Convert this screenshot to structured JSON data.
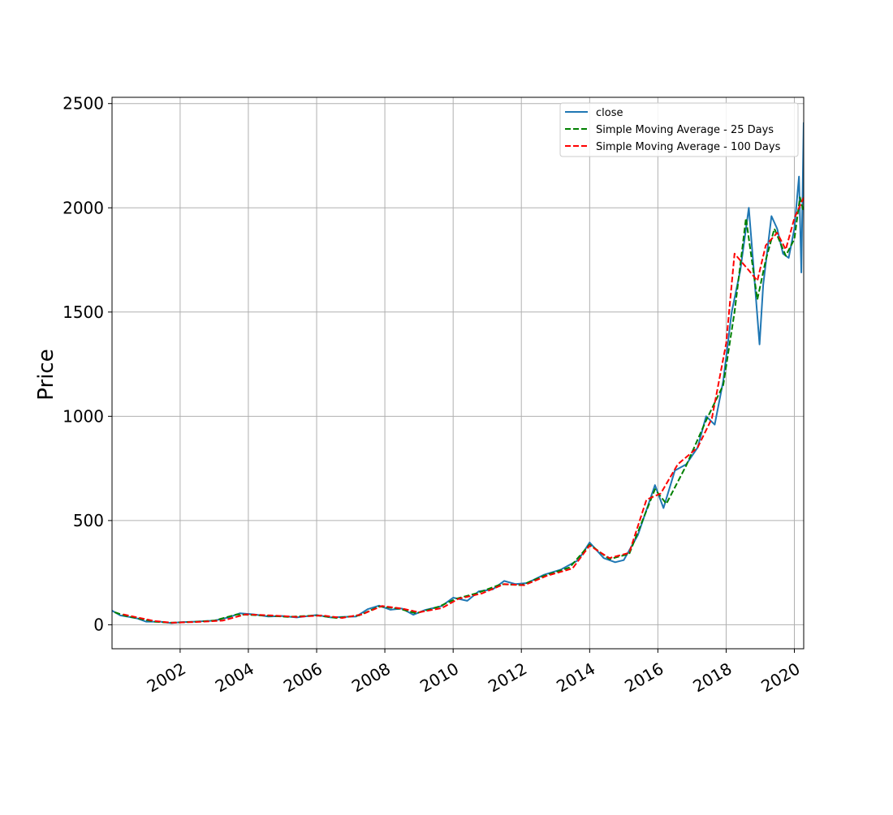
{
  "chart_data": {
    "type": "line",
    "title": "",
    "xlabel": "",
    "ylabel": "Price",
    "x_axis_kind": "date",
    "xlim": [
      "2000-01-03",
      "2020-04-10"
    ],
    "ylim": [
      -115,
      2530
    ],
    "x_ticks": [
      "2002-01-01",
      "2004-01-01",
      "2006-01-01",
      "2008-01-01",
      "2010-01-01",
      "2012-01-01",
      "2014-01-01",
      "2016-01-01",
      "2018-01-01",
      "2020-01-01"
    ],
    "x_tick_labels": [
      "2002",
      "2004",
      "2006",
      "2008",
      "2010",
      "2012",
      "2014",
      "2016",
      "2018",
      "2020"
    ],
    "y_ticks": [
      0,
      500,
      1000,
      1500,
      2000,
      2500
    ],
    "y_tick_labels": [
      "0",
      "500",
      "1000",
      "1500",
      "2000",
      "2500"
    ],
    "grid": true,
    "legend_position": "upper right",
    "series": [
      {
        "name": "close",
        "color": "#1f77b4",
        "style": "solid",
        "points": [
          [
            "2000-01-03",
            68
          ],
          [
            "2000-04-01",
            45
          ],
          [
            "2000-07-01",
            38
          ],
          [
            "2000-10-01",
            30
          ],
          [
            "2001-01-01",
            15
          ],
          [
            "2001-06-01",
            15
          ],
          [
            "2001-10-01",
            8
          ],
          [
            "2002-01-01",
            12
          ],
          [
            "2002-06-01",
            15
          ],
          [
            "2003-01-01",
            20
          ],
          [
            "2003-06-01",
            35
          ],
          [
            "2003-10-01",
            55
          ],
          [
            "2004-03-01",
            50
          ],
          [
            "2004-08-01",
            40
          ],
          [
            "2005-01-01",
            42
          ],
          [
            "2005-06-01",
            35
          ],
          [
            "2006-01-01",
            47
          ],
          [
            "2006-06-01",
            35
          ],
          [
            "2006-10-01",
            38
          ],
          [
            "2007-03-01",
            40
          ],
          [
            "2007-07-01",
            75
          ],
          [
            "2007-11-01",
            92
          ],
          [
            "2008-03-01",
            72
          ],
          [
            "2008-07-01",
            78
          ],
          [
            "2008-11-01",
            48
          ],
          [
            "2009-03-01",
            70
          ],
          [
            "2009-09-01",
            90
          ],
          [
            "2010-01-01",
            130
          ],
          [
            "2010-06-01",
            115
          ],
          [
            "2010-10-01",
            160
          ],
          [
            "2011-03-01",
            170
          ],
          [
            "2011-07-01",
            210
          ],
          [
            "2011-11-01",
            195
          ],
          [
            "2012-03-01",
            200
          ],
          [
            "2012-09-01",
            240
          ],
          [
            "2013-03-01",
            265
          ],
          [
            "2013-09-01",
            310
          ],
          [
            "2014-01-01",
            395
          ],
          [
            "2014-06-01",
            320
          ],
          [
            "2014-10-01",
            300
          ],
          [
            "2015-01-01",
            310
          ],
          [
            "2015-06-01",
            430
          ],
          [
            "2015-12-01",
            670
          ],
          [
            "2016-03-01",
            560
          ],
          [
            "2016-07-01",
            740
          ],
          [
            "2016-11-01",
            770
          ],
          [
            "2017-03-01",
            850
          ],
          [
            "2017-06-01",
            1000
          ],
          [
            "2017-09-01",
            960
          ],
          [
            "2017-12-01",
            1170
          ],
          [
            "2018-03-01",
            1500
          ],
          [
            "2018-06-01",
            1700
          ],
          [
            "2018-09-01",
            2000
          ],
          [
            "2018-10-15",
            1750
          ],
          [
            "2018-12-24",
            1345
          ],
          [
            "2019-02-01",
            1630
          ],
          [
            "2019-05-01",
            1960
          ],
          [
            "2019-07-01",
            1900
          ],
          [
            "2019-09-01",
            1780
          ],
          [
            "2019-11-01",
            1760
          ],
          [
            "2020-01-01",
            1900
          ],
          [
            "2020-02-20",
            2150
          ],
          [
            "2020-03-16",
            1690
          ],
          [
            "2020-04-10",
            2410
          ]
        ]
      },
      {
        "name": "Simple Moving Average - 25 Days",
        "color": "#008000",
        "style": "dashed",
        "points": [
          [
            "2000-02-01",
            60
          ],
          [
            "2000-06-01",
            42
          ],
          [
            "2000-11-01",
            28
          ],
          [
            "2001-04-01",
            15
          ],
          [
            "2001-10-01",
            10
          ],
          [
            "2002-06-01",
            14
          ],
          [
            "2003-01-01",
            20
          ],
          [
            "2003-09-01",
            50
          ],
          [
            "2004-06-01",
            45
          ],
          [
            "2005-03-01",
            38
          ],
          [
            "2006-01-01",
            45
          ],
          [
            "2006-08-01",
            33
          ],
          [
            "2007-04-01",
            45
          ],
          [
            "2007-11-01",
            88
          ],
          [
            "2008-06-01",
            77
          ],
          [
            "2008-12-01",
            55
          ],
          [
            "2009-08-01",
            87
          ],
          [
            "2010-02-01",
            125
          ],
          [
            "2010-09-01",
            150
          ],
          [
            "2011-06-01",
            195
          ],
          [
            "2012-01-01",
            190
          ],
          [
            "2012-09-01",
            235
          ],
          [
            "2013-06-01",
            275
          ],
          [
            "2014-01-01",
            385
          ],
          [
            "2014-08-01",
            315
          ],
          [
            "2015-03-01",
            340
          ],
          [
            "2015-12-01",
            650
          ],
          [
            "2016-04-01",
            580
          ],
          [
            "2016-11-01",
            765
          ],
          [
            "2017-06-01",
            980
          ],
          [
            "2017-12-01",
            1150
          ],
          [
            "2018-04-01",
            1500
          ],
          [
            "2018-08-01",
            1950
          ],
          [
            "2018-12-01",
            1560
          ],
          [
            "2019-03-01",
            1750
          ],
          [
            "2019-06-01",
            1900
          ],
          [
            "2019-10-01",
            1770
          ],
          [
            "2020-01-01",
            1850
          ],
          [
            "2020-03-01",
            2050
          ],
          [
            "2020-04-10",
            1980
          ]
        ]
      },
      {
        "name": "Simple Moving Average - 100 Days",
        "color": "#ff0000",
        "style": "dashed",
        "points": [
          [
            "2000-05-01",
            50
          ],
          [
            "2000-10-01",
            35
          ],
          [
            "2001-04-01",
            18
          ],
          [
            "2001-10-01",
            10
          ],
          [
            "2002-08-01",
            14
          ],
          [
            "2003-04-01",
            20
          ],
          [
            "2003-12-01",
            50
          ],
          [
            "2004-09-01",
            45
          ],
          [
            "2005-06-01",
            38
          ],
          [
            "2006-03-01",
            45
          ],
          [
            "2006-10-01",
            33
          ],
          [
            "2007-05-01",
            50
          ],
          [
            "2007-12-01",
            90
          ],
          [
            "2008-07-01",
            78
          ],
          [
            "2009-01-01",
            60
          ],
          [
            "2009-09-01",
            80
          ],
          [
            "2010-03-01",
            125
          ],
          [
            "2010-11-01",
            150
          ],
          [
            "2011-07-01",
            195
          ],
          [
            "2012-02-01",
            190
          ],
          [
            "2012-10-01",
            235
          ],
          [
            "2013-07-01",
            270
          ],
          [
            "2014-01-01",
            380
          ],
          [
            "2014-08-01",
            320
          ],
          [
            "2015-03-01",
            345
          ],
          [
            "2015-09-01",
            600
          ],
          [
            "2016-02-01",
            630
          ],
          [
            "2016-08-01",
            770
          ],
          [
            "2017-03-01",
            850
          ],
          [
            "2017-08-01",
            990
          ],
          [
            "2018-01-01",
            1350
          ],
          [
            "2018-04-01",
            1780
          ],
          [
            "2018-09-01",
            1700
          ],
          [
            "2018-12-01",
            1650
          ],
          [
            "2019-03-01",
            1820
          ],
          [
            "2019-07-01",
            1880
          ],
          [
            "2019-10-01",
            1800
          ],
          [
            "2020-01-01",
            1950
          ],
          [
            "2020-04-10",
            2050
          ]
        ]
      }
    ]
  }
}
